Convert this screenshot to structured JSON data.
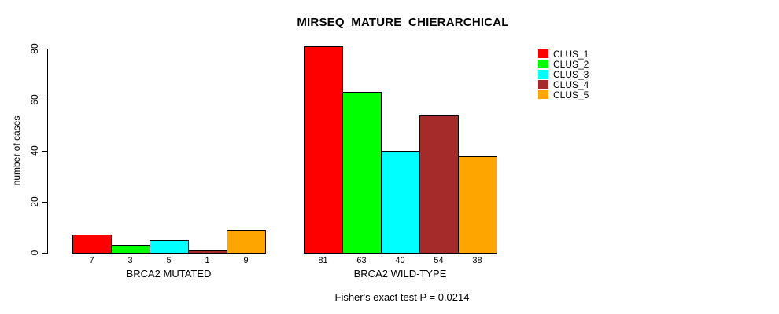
{
  "chart_data": {
    "type": "bar",
    "title": "MIRSEQ_MATURE_CHIERARCHICAL",
    "ylabel": "number of cases",
    "subtitle": "Fisher's exact test P = 0.0214",
    "yticks": [
      0,
      20,
      40,
      60,
      80
    ],
    "ylim": [
      0,
      80
    ],
    "grid": false,
    "legend_position": "top-right",
    "bar_value_labels": true,
    "series": [
      {
        "name": "CLUS_1",
        "color": "#ff0000"
      },
      {
        "name": "CLUS_2",
        "color": "#00ff00"
      },
      {
        "name": "CLUS_3",
        "color": "#00ffff"
      },
      {
        "name": "CLUS_4",
        "color": "#a52a2a"
      },
      {
        "name": "CLUS_5",
        "color": "#ffa500"
      }
    ],
    "groups": [
      {
        "label": "BRCA2 MUTATED",
        "values": [
          7,
          3,
          5,
          1,
          9
        ]
      },
      {
        "label": "BRCA2 WILD-TYPE",
        "values": [
          81,
          63,
          40,
          54,
          38
        ]
      }
    ]
  }
}
